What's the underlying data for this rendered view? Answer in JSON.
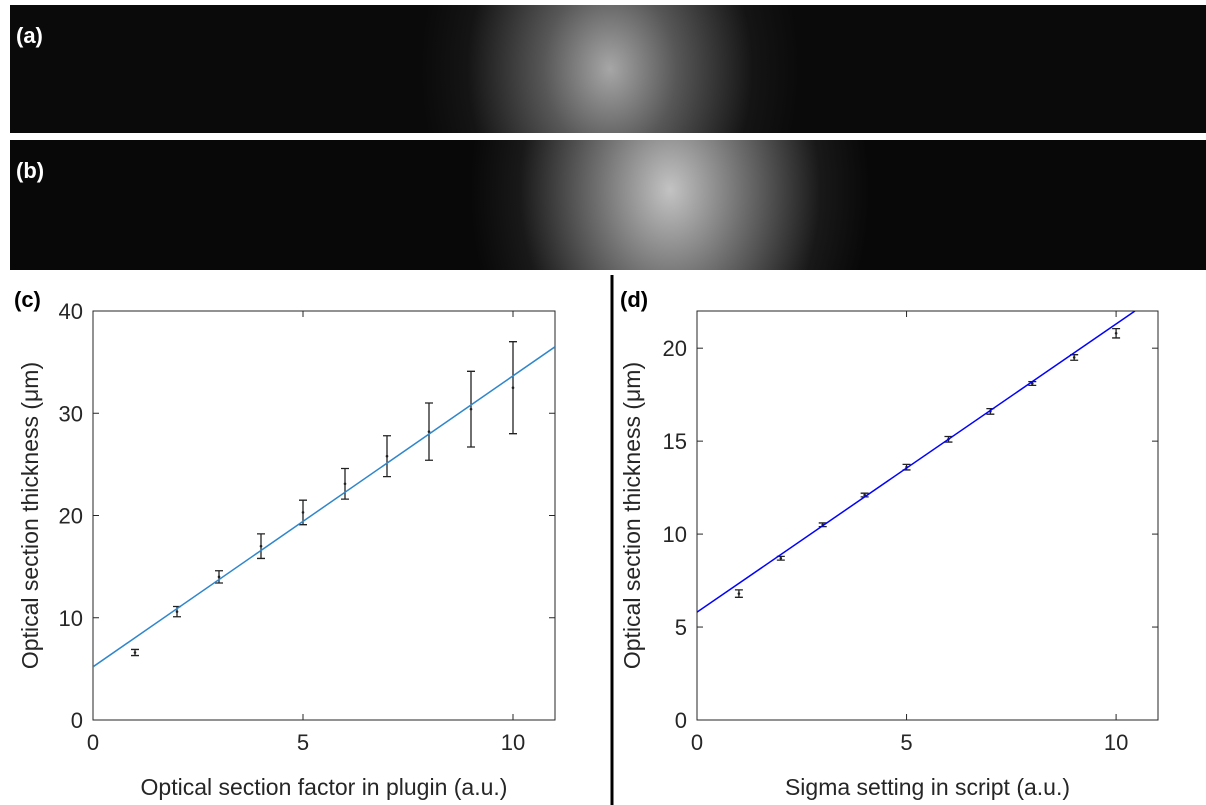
{
  "panels": [
    {
      "label": "(a)"
    },
    {
      "label": "(b)"
    }
  ],
  "chart_data": [
    {
      "type": "errorbar",
      "panel_label": "(c)",
      "x_label": "Optical section factor in plugin (a.u.)",
      "y_label": "Optical section thickness (μm)",
      "x": [
        1,
        2,
        3,
        4,
        5,
        6,
        7,
        8,
        9,
        10
      ],
      "values": [
        6.6,
        10.6,
        14.0,
        17.0,
        20.3,
        23.1,
        25.8,
        28.2,
        30.4,
        32.5
      ],
      "errors": [
        0.3,
        0.5,
        0.6,
        1.2,
        1.2,
        1.5,
        2.0,
        2.8,
        3.7,
        4.5
      ],
      "color": "#222222",
      "fit_x": [
        0,
        11
      ],
      "fit_values": [
        5.2,
        36.5
      ],
      "fit_color": "#2f86cc",
      "xlim": [
        0,
        11
      ],
      "ylim": [
        0,
        40
      ],
      "xticks": [
        0,
        5,
        10
      ],
      "yticks": [
        0,
        10,
        20,
        30,
        40
      ]
    },
    {
      "type": "errorbar",
      "panel_label": "(d)",
      "x_label": "Sigma setting in script (a.u.)",
      "y_label": "Optical section thickness (μm)",
      "x": [
        1,
        2,
        3,
        4,
        5,
        6,
        7,
        8,
        9,
        10
      ],
      "values": [
        6.8,
        8.7,
        10.5,
        12.1,
        13.6,
        15.1,
        16.6,
        18.1,
        19.5,
        20.8
      ],
      "errors": [
        0.2,
        0.1,
        0.1,
        0.1,
        0.15,
        0.15,
        0.15,
        0.1,
        0.15,
        0.25
      ],
      "color": "#222222",
      "fit_x": [
        0,
        10.45
      ],
      "fit_values": [
        5.8,
        22
      ],
      "fit_color": "#0000ff",
      "xlim": [
        0,
        11
      ],
      "ylim": [
        0,
        22
      ],
      "xticks": [
        0,
        5,
        10
      ],
      "yticks": [
        0,
        5,
        10,
        15,
        20
      ]
    }
  ]
}
